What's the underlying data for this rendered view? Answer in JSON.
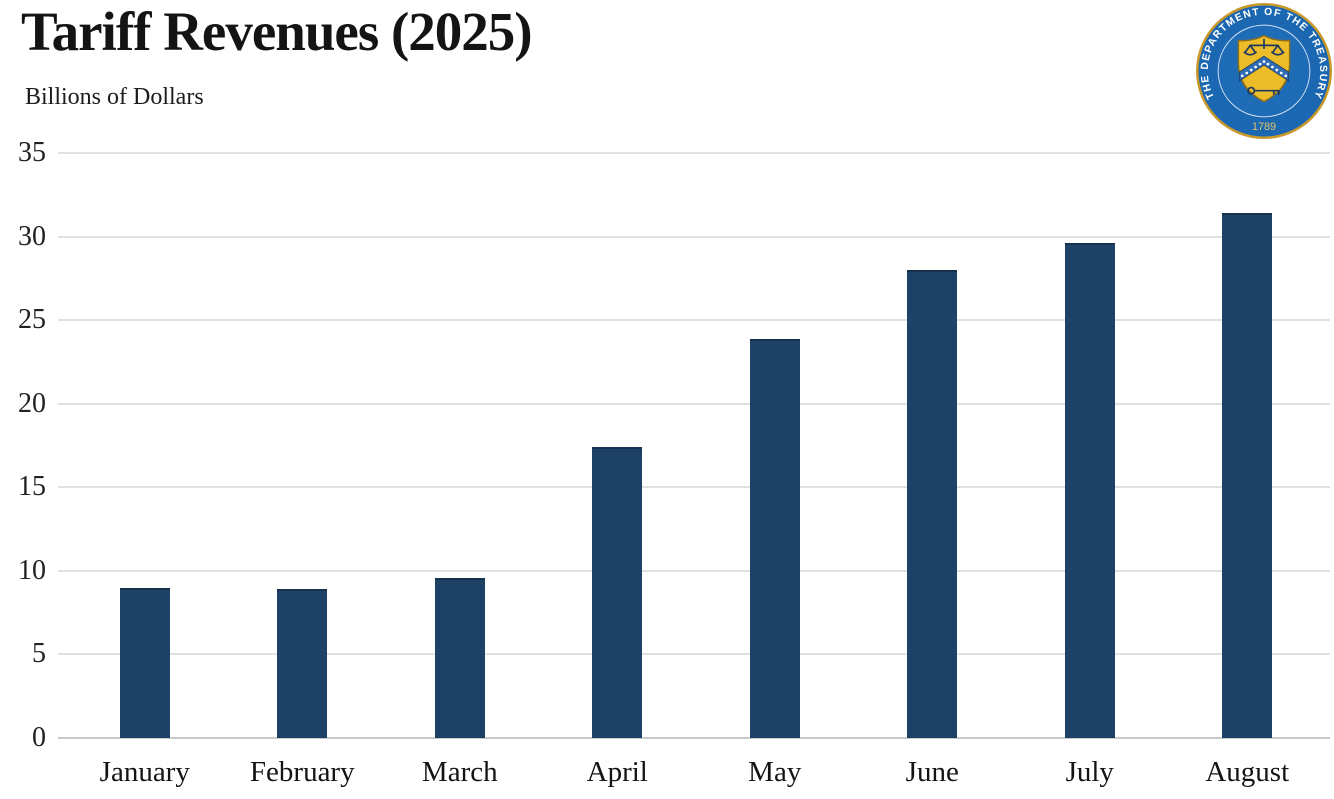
{
  "page": {
    "title": "Tariff Revenues (2025)",
    "subtitle": "Billions of Dollars"
  },
  "seal": {
    "ring_text": "THE DEPARTMENT OF THE TREASURY",
    "year": "1789",
    "colors": {
      "outer_gold": "#c9992a",
      "ring_blue": "#1b67b1",
      "inner_blue": "#1e6cb5",
      "shield_gold": "#edbd29",
      "shield_border": "#8a6d1c",
      "emblem_dark": "#1c3a60",
      "chevron_blue": "#2e6db5",
      "year_gold": "#e3c469",
      "text_white": "#ffffff"
    }
  },
  "chart_data": {
    "type": "bar",
    "title": "Tariff Revenues (2025)",
    "ylabel": "Billions of Dollars",
    "xlabel": "",
    "categories": [
      "January",
      "February",
      "March",
      "April",
      "May",
      "June",
      "July",
      "August"
    ],
    "values": [
      9.0,
      8.9,
      9.6,
      17.4,
      23.9,
      28.0,
      29.6,
      31.4
    ],
    "ylim": [
      0,
      35
    ],
    "ytick_step": 5,
    "grid": true,
    "legend": "none",
    "bar_color": "#1e4266",
    "bar_edge_color": "#17324f",
    "gridline_color": "#e0e0e0"
  }
}
